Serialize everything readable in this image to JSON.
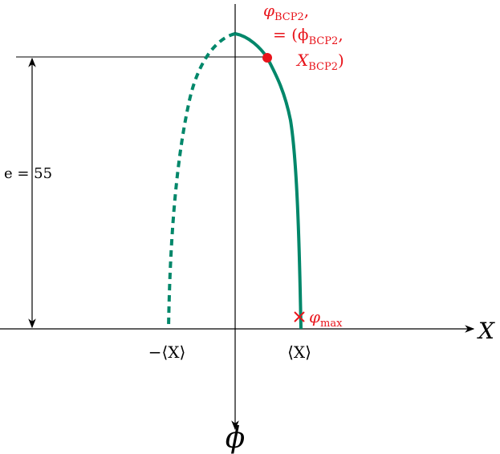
{
  "axes": {
    "x_label": "X",
    "y_label": "ϕ"
  },
  "ticks": {
    "negative": "−⟨X⟩",
    "positive": "⟨X⟩"
  },
  "annotations": {
    "bcp_point": {
      "symbol": "φ",
      "sub": "BCP2",
      "suffix": ","
    },
    "bcp_coords_1": {
      "prefix": "= (ϕ",
      "sub": "BCP2",
      "suffix": ","
    },
    "bcp_coords_2": {
      "prefix": "X",
      "sub": "BCP2",
      "suffix": ")"
    },
    "height": "e = 55",
    "max": {
      "symbol": "φ",
      "sub": "max"
    }
  }
}
